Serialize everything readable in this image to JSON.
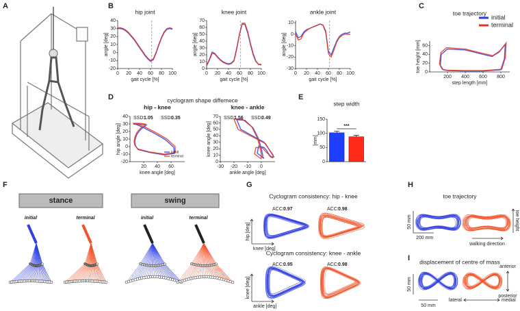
{
  "panel_labels": [
    "A",
    "B",
    "C",
    "D",
    "E",
    "F",
    "G",
    "H",
    "I"
  ],
  "chart_data": [
    {
      "type": "line",
      "title": "hip joint",
      "xlabel": "gait cycle [%]",
      "ylabel": "angle [deg]",
      "x": [
        0,
        5,
        10,
        15,
        20,
        25,
        30,
        35,
        40,
        45,
        50,
        55,
        60,
        65,
        70,
        75,
        80,
        85,
        90,
        95,
        100
      ],
      "xlim": [
        0,
        100
      ],
      "xticks": [
        0,
        20,
        40,
        60,
        80,
        100
      ],
      "ylim": [
        -20,
        40
      ],
      "yticks": [
        -20,
        -10,
        0,
        10,
        20,
        30,
        40
      ],
      "vline": 62,
      "series": [
        {
          "name": "initial",
          "color": "#2b3bd9",
          "values": [
            30,
            30,
            29,
            27,
            24,
            20,
            16,
            11,
            6,
            1,
            -4,
            -8,
            -11,
            -9,
            -1,
            9,
            18,
            25,
            29,
            30,
            29
          ]
        },
        {
          "name": "terminal",
          "color": "#e8341c",
          "values": [
            31,
            31,
            30,
            28,
            25,
            21,
            17,
            12,
            7,
            2,
            -3,
            -7,
            -10,
            -8,
            0,
            10,
            19,
            26,
            30,
            31,
            30
          ]
        }
      ]
    },
    {
      "type": "line",
      "title": "knee joint",
      "xlabel": "gait cycle [%]",
      "ylabel": "angle [deg]",
      "x": [
        0,
        5,
        10,
        15,
        20,
        25,
        30,
        35,
        40,
        45,
        50,
        55,
        60,
        65,
        70,
        75,
        80,
        85,
        90,
        95,
        100
      ],
      "xlim": [
        0,
        100
      ],
      "xticks": [
        0,
        20,
        40,
        60,
        80,
        100
      ],
      "ylim": [
        0,
        70
      ],
      "yticks": [
        0,
        10,
        20,
        30,
        40,
        50,
        60,
        70
      ],
      "vline": 62,
      "series": [
        {
          "name": "initial",
          "color": "#2b3bd9",
          "values": [
            5,
            13,
            24,
            22,
            17,
            13,
            10,
            8,
            7,
            8,
            12,
            30,
            50,
            65,
            64,
            52,
            35,
            20,
            10,
            6,
            6
          ]
        },
        {
          "name": "terminal",
          "color": "#e8341c",
          "values": [
            4,
            12,
            22,
            21,
            16,
            12,
            9,
            7,
            6,
            7,
            11,
            28,
            50,
            66,
            66,
            54,
            37,
            22,
            11,
            6,
            5
          ]
        }
      ]
    },
    {
      "type": "line",
      "title": "ankle joint",
      "xlabel": "gait cycle [%]",
      "ylabel": "angle [deg]",
      "x": [
        0,
        5,
        10,
        15,
        20,
        25,
        30,
        35,
        40,
        45,
        50,
        55,
        60,
        65,
        70,
        75,
        80,
        85,
        90,
        95,
        100
      ],
      "xlim": [
        0,
        100
      ],
      "xticks": [
        0,
        20,
        40,
        60,
        80,
        100
      ],
      "ylim": [
        -30,
        12
      ],
      "yticks": [
        -30,
        -20,
        -10,
        0,
        10
      ],
      "vline": 62,
      "series": [
        {
          "name": "initial",
          "color": "#2b3bd9",
          "values": [
            2,
            -3,
            -2,
            2,
            4,
            5,
            6,
            7,
            8,
            9,
            8,
            2,
            -15,
            -18,
            -12,
            -6,
            -2,
            0,
            1,
            1,
            2
          ]
        },
        {
          "name": "terminal",
          "color": "#e8341c",
          "values": [
            0,
            -5,
            -4,
            1,
            3,
            5,
            6,
            7,
            8,
            9,
            8,
            3,
            -17,
            -20,
            -14,
            -7,
            -3,
            -1,
            0,
            0,
            0
          ]
        }
      ]
    },
    {
      "type": "line",
      "title": "toe trajectory",
      "xlabel": "step length [mm]",
      "ylabel": "toe height [mm]",
      "xlim": [
        0,
        900
      ],
      "xticks": [
        200,
        400,
        600,
        800
      ],
      "ylim": [
        0,
        70
      ],
      "yticks": [
        0,
        20,
        40,
        60
      ],
      "legend": "top-right",
      "series": [
        {
          "name": "initial",
          "color": "#2b3bd9",
          "x": [
            150,
            120,
            130,
            200,
            400,
            600,
            700,
            780,
            820,
            850,
            840,
            800,
            600,
            400,
            200,
            150
          ],
          "values": [
            5,
            15,
            40,
            52,
            50,
            40,
            35,
            45,
            55,
            62,
            30,
            5,
            2,
            2,
            3,
            5
          ]
        },
        {
          "name": "terminal",
          "color": "#e8341c",
          "x": [
            140,
            110,
            125,
            190,
            400,
            600,
            710,
            790,
            830,
            860,
            850,
            810,
            600,
            400,
            190,
            140
          ],
          "values": [
            6,
            18,
            44,
            55,
            52,
            42,
            37,
            48,
            58,
            66,
            32,
            6,
            3,
            3,
            4,
            6
          ]
        }
      ]
    },
    {
      "type": "line",
      "title": "hip - knee",
      "xlabel": "knee angle [deg]",
      "ylabel": "hip angle [deg]",
      "xlim": [
        0,
        80
      ],
      "xticks": [
        20,
        40,
        60
      ],
      "ylim": [
        -20,
        40
      ],
      "yticks": [
        -20,
        -10,
        0,
        10,
        20,
        30,
        40
      ],
      "legend": "bottom-right",
      "ssd_label": "SSD:",
      "ssd": [
        1.05,
        0.35
      ],
      "series": [
        {
          "name": "initial",
          "color": "#2b3bd9",
          "x": [
            5,
            13,
            24,
            22,
            17,
            13,
            10,
            8,
            7,
            8,
            12,
            30,
            50,
            65,
            64,
            52,
            35,
            20,
            10,
            6,
            6
          ],
          "values": [
            30,
            30,
            29,
            27,
            24,
            20,
            16,
            11,
            6,
            1,
            -4,
            -8,
            -11,
            -9,
            -1,
            9,
            18,
            25,
            29,
            30,
            29
          ]
        },
        {
          "name": "terminal",
          "color": "#e8341c",
          "x": [
            4,
            12,
            22,
            21,
            16,
            12,
            9,
            7,
            6,
            7,
            11,
            28,
            50,
            66,
            66,
            54,
            37,
            22,
            11,
            6,
            5
          ],
          "values": [
            31,
            31,
            30,
            28,
            25,
            21,
            17,
            12,
            7,
            2,
            -3,
            -7,
            -10,
            -8,
            0,
            10,
            19,
            26,
            30,
            31,
            30
          ]
        }
      ]
    },
    {
      "type": "line",
      "title": "knee - ankle",
      "xlabel": "ankle angle [deg]",
      "ylabel": "knee angle [deg]",
      "xlim": [
        -30,
        10
      ],
      "xticks": [
        -30,
        -20,
        -10,
        0
      ],
      "ylim": [
        0,
        70
      ],
      "yticks": [
        0,
        10,
        20,
        30,
        40,
        50,
        60,
        70
      ],
      "ssd_label": "SSD:",
      "ssd": [
        1.56,
        0.49
      ],
      "series": [
        {
          "name": "initial",
          "color": "#2b3bd9",
          "x": [
            2,
            -3,
            -2,
            2,
            4,
            5,
            6,
            7,
            8,
            9,
            8,
            2,
            -15,
            -18,
            -12,
            -6,
            -2,
            0,
            1,
            1,
            2
          ],
          "values": [
            5,
            13,
            24,
            22,
            17,
            13,
            10,
            8,
            7,
            8,
            12,
            30,
            50,
            65,
            64,
            52,
            35,
            20,
            10,
            6,
            6
          ]
        },
        {
          "name": "terminal",
          "color": "#e8341c",
          "x": [
            0,
            -5,
            -4,
            1,
            3,
            5,
            6,
            7,
            8,
            9,
            8,
            3,
            -17,
            -20,
            -14,
            -7,
            -3,
            -1,
            0,
            0,
            0
          ],
          "values": [
            4,
            12,
            22,
            21,
            16,
            12,
            9,
            7,
            6,
            7,
            11,
            28,
            50,
            66,
            66,
            54,
            37,
            22,
            11,
            6,
            5
          ]
        }
      ]
    },
    {
      "type": "bar",
      "title": "step width",
      "ylabel": "[mm]",
      "ylim": [
        0,
        150
      ],
      "yticks": [
        0,
        50,
        100,
        150
      ],
      "values": [
        102,
        88
      ],
      "errors": [
        6,
        5
      ],
      "colors": [
        "#1f3fff",
        "#ff2a1a"
      ],
      "significance": "***"
    }
  ],
  "panel_d": {
    "title": "cyclogram shape diffemece"
  },
  "panel_f": {
    "phases": [
      "stance",
      "swing"
    ],
    "conditions": [
      "initial",
      "terminal"
    ]
  },
  "panel_g": {
    "title_hip_knee": "Cyclogram consistency: hip - knee",
    "title_knee_ankle": "Cyclogram consistency: knee - ankle",
    "acc_label": "ACC:",
    "acc_hip_knee": [
      0.97,
      0.98
    ],
    "acc_knee_ankle": [
      0.95,
      0.98
    ],
    "axis_hip": "hip [deg]",
    "axis_knee": "knee [deg]",
    "axis_ankle": "ankle [deg]"
  },
  "panel_h": {
    "title": "toe trajectory",
    "scale_v": "50 mm",
    "scale_h": "200 mm",
    "axis_v": "toe height",
    "axis_h": "walking direction"
  },
  "panel_i": {
    "title": "displacement of centre of mass",
    "scale_v": "50 mm",
    "scale_h": "50 mm",
    "anterior": "anterior",
    "posterior": "posterior",
    "lateral": "lateral",
    "medial": "medial"
  }
}
